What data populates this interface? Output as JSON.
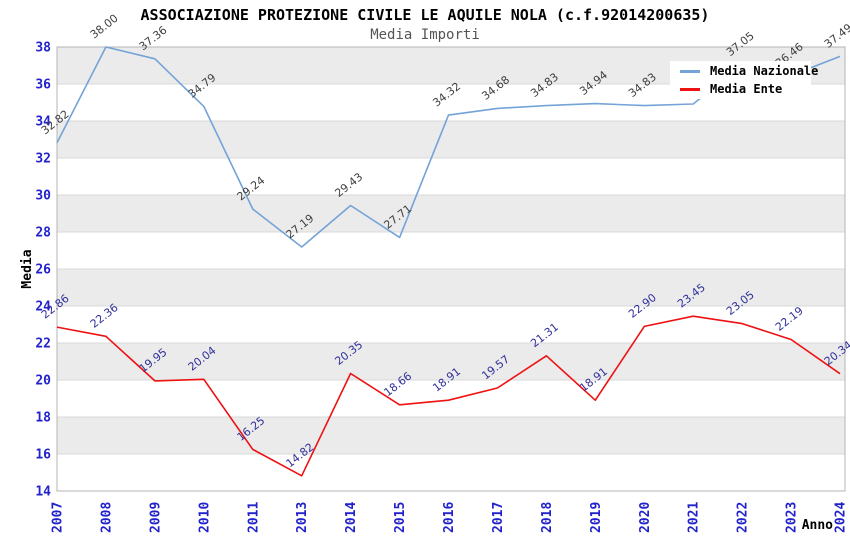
{
  "chart_data": {
    "type": "line",
    "title": "ASSOCIAZIONE PROTEZIONE CIVILE LE AQUILE NOLA (c.f.92014200635)",
    "subtitle": "Media Importi",
    "xlabel": "Anno",
    "ylabel": "Media",
    "ylim": [
      14,
      38
    ],
    "ytick_step": 2,
    "grid": "horizontal-bands-alternating",
    "legend_position": "overlay-top-right",
    "categories": [
      "2007",
      "2008",
      "2009",
      "2010",
      "2011",
      "2013",
      "2014",
      "2015",
      "2016",
      "2017",
      "2018",
      "2019",
      "2020",
      "2021",
      "2022",
      "2023",
      "2024"
    ],
    "series": [
      {
        "name": "Media Nazionale",
        "color": "#74a3d8",
        "values": [
          32.82,
          38.0,
          37.36,
          34.79,
          29.24,
          27.19,
          29.43,
          27.71,
          34.32,
          34.68,
          34.83,
          34.94,
          34.83,
          34.92,
          37.05,
          36.46,
          37.49
        ],
        "labels": [
          "32.82",
          "38.00",
          "37.36",
          "34.79",
          "29.24",
          "27.19",
          "29.43",
          "27.71",
          "34.32",
          "34.68",
          "34.83",
          "34.94",
          "34.83",
          null,
          "37.05",
          "36.46",
          "37.49"
        ],
        "label_color": "#3f3f3f"
      },
      {
        "name": "Media Ente",
        "color": "#ee1111",
        "values": [
          22.86,
          22.36,
          19.95,
          20.04,
          16.25,
          14.82,
          20.35,
          18.66,
          18.91,
          19.57,
          21.31,
          18.91,
          22.9,
          23.45,
          23.05,
          22.19,
          20.34
        ],
        "labels": [
          "22.86",
          "22.36",
          "19.95",
          "20.04",
          "16.25",
          "14.82",
          "20.35",
          "18.66",
          "18.91",
          "19.57",
          "21.31",
          "18.91",
          "22.90",
          "23.45",
          "23.05",
          "22.19",
          "20.34"
        ],
        "label_color": "#30309a"
      }
    ],
    "colors": {
      "axis_tick_text": "#2222cc",
      "band_fill": "#ebebeb",
      "grid_line": "#d8d8d8",
      "plot_border": "#b4b4b4",
      "subtitle_text": "#555555"
    }
  }
}
